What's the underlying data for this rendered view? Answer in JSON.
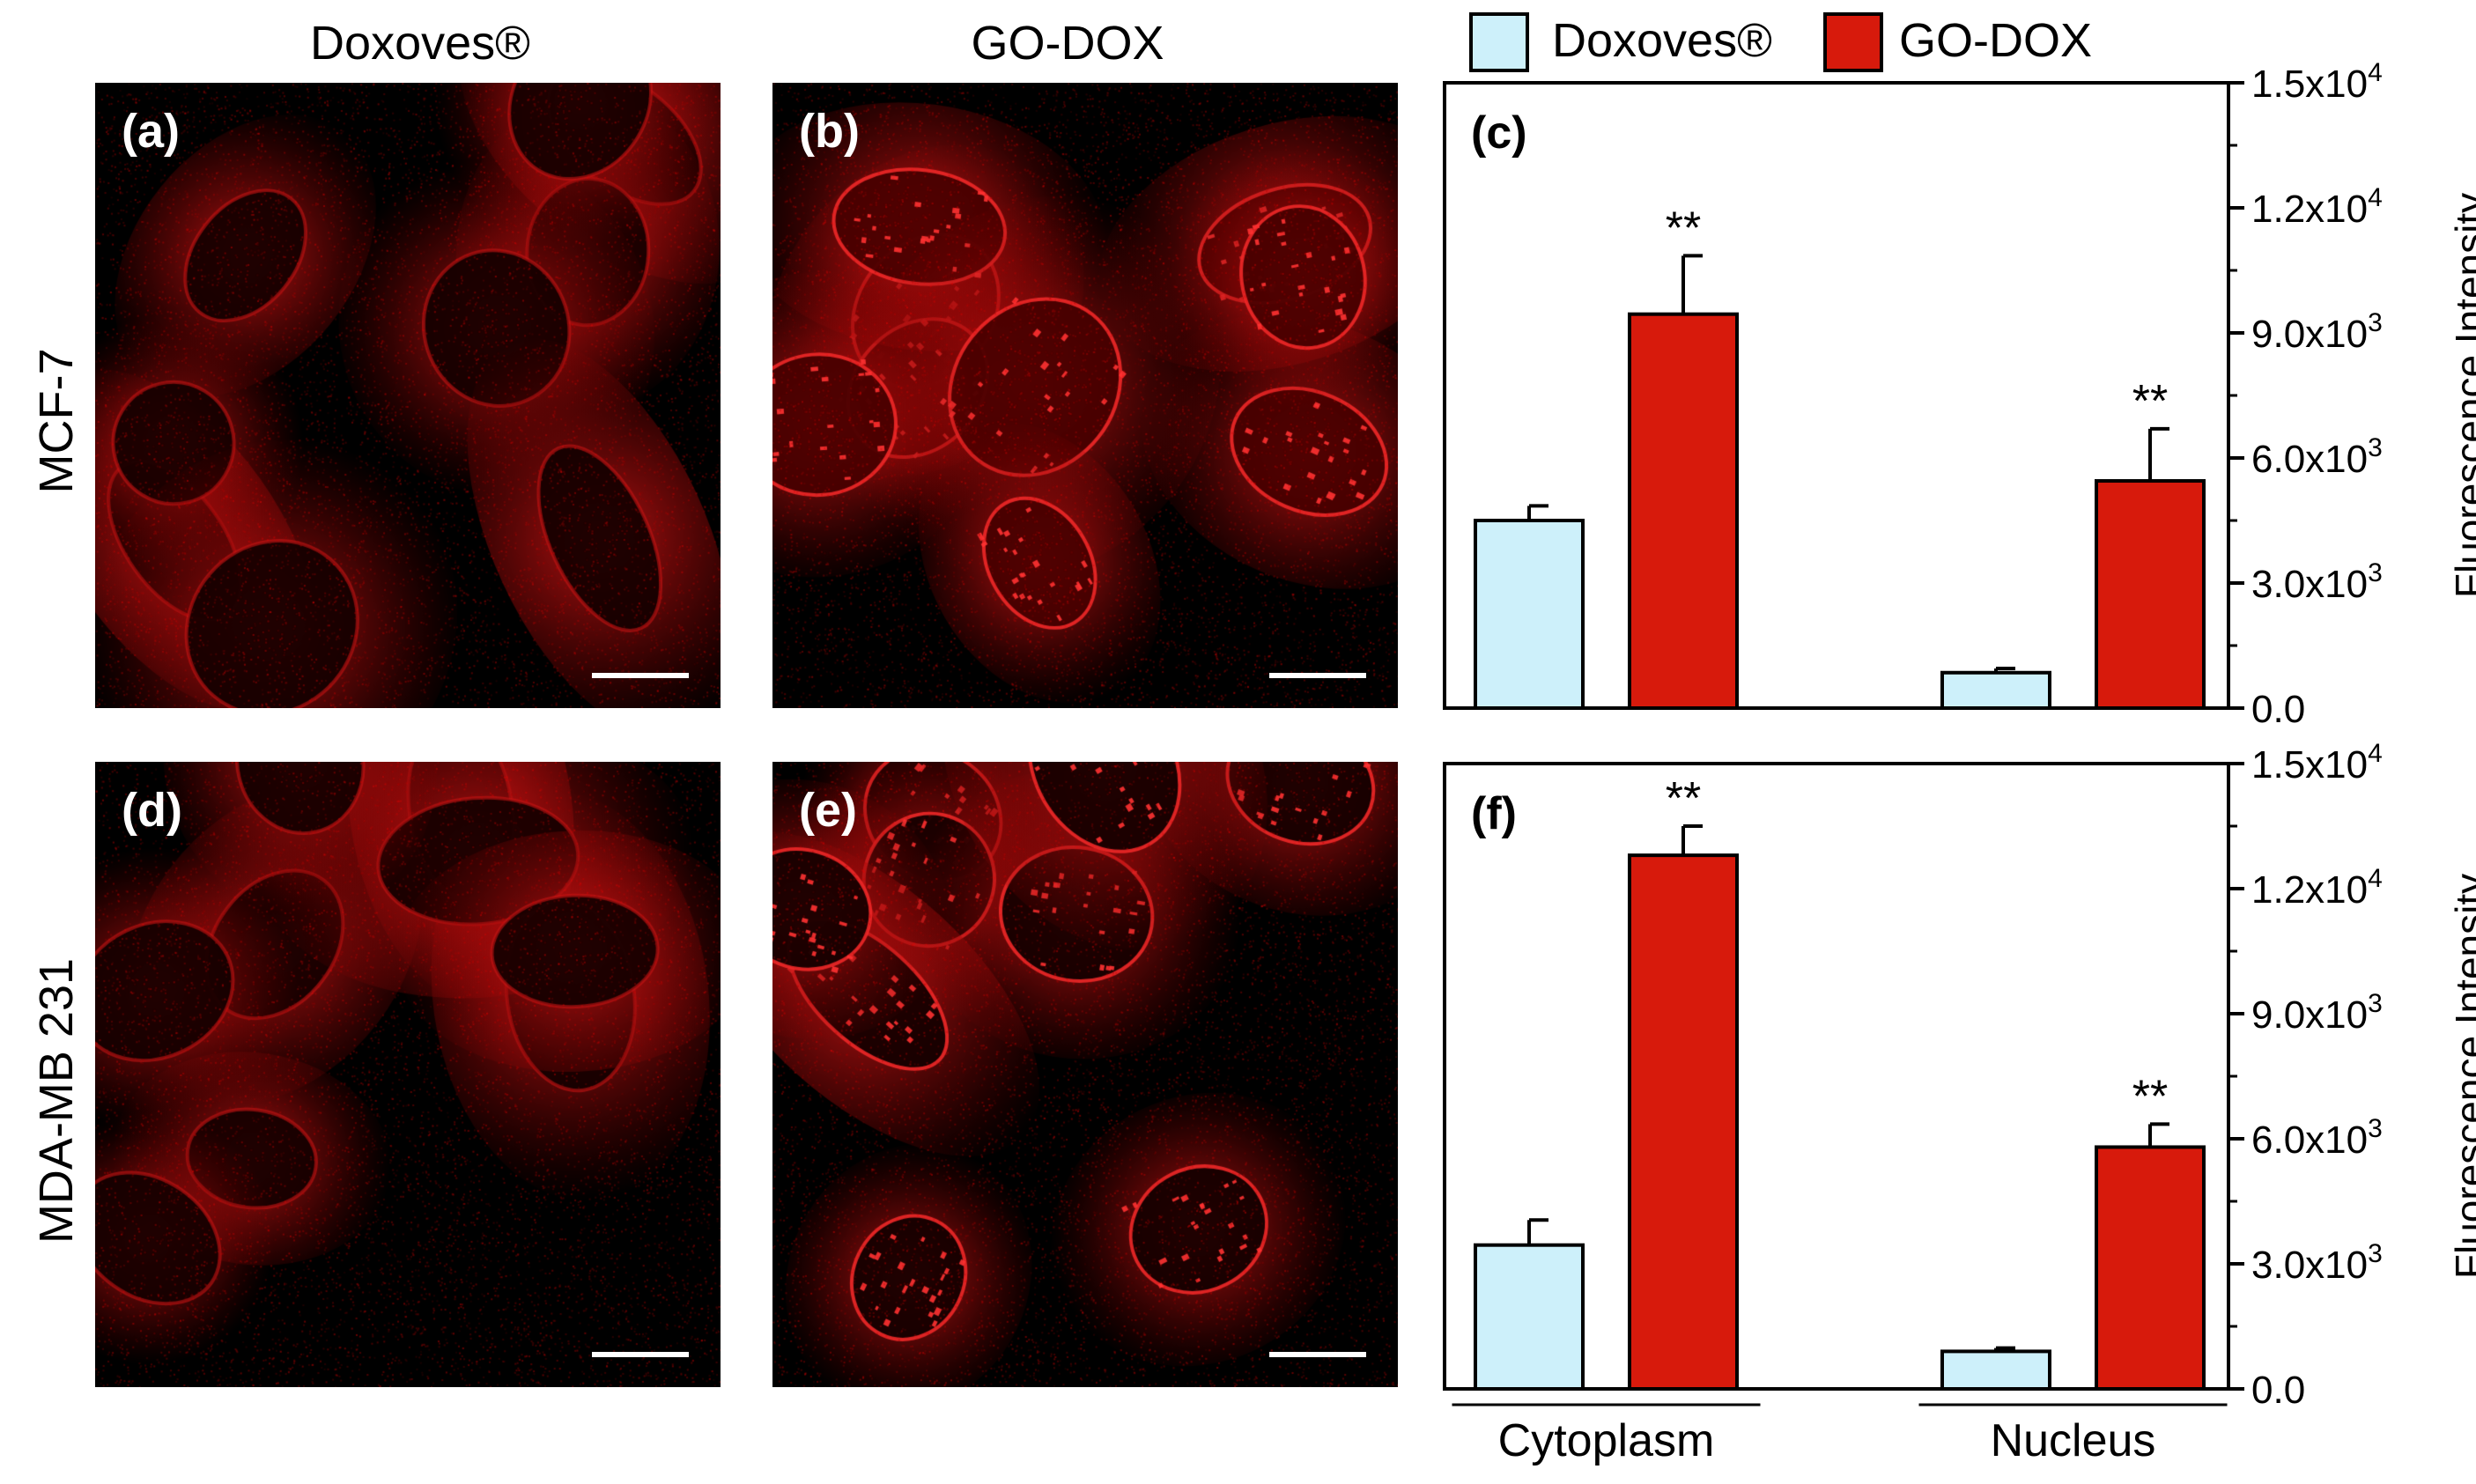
{
  "columns": [
    "Doxoves®",
    "GO-DOX"
  ],
  "rows": [
    "MCF-7",
    "MDA-MB 231"
  ],
  "images": [
    {
      "label": "(a)",
      "row": "MCF-7",
      "treatment": "Doxoves®"
    },
    {
      "label": "(b)",
      "row": "MCF-7",
      "treatment": "GO-DOX"
    },
    {
      "label": "(d)",
      "row": "MDA-MB 231",
      "treatment": "Doxoves®"
    },
    {
      "label": "(e)",
      "row": "MDA-MB 231",
      "treatment": "GO-DOX"
    }
  ],
  "legend": {
    "items": [
      {
        "name": "Doxoves®",
        "color": "#cdf0fa"
      },
      {
        "name": "GO-DOX",
        "color": "#d71a0c"
      }
    ]
  },
  "chart_data": [
    {
      "panel": "(c)",
      "type": "bar",
      "categories": [
        "Cytoplasm",
        "Nucleus"
      ],
      "series": [
        {
          "name": "Doxoves®",
          "values": [
            4500,
            850
          ],
          "errors": [
            350,
            100
          ],
          "color": "#cdf0fa"
        },
        {
          "name": "GO-DOX",
          "values": [
            9450,
            5450
          ],
          "errors": [
            1400,
            1250
          ],
          "color": "#d71a0c",
          "annotations": [
            "**",
            "**"
          ]
        }
      ],
      "ylabel": "Fluorescence Intensity",
      "ylim": [
        0,
        15000
      ],
      "yticks": [
        0,
        3000,
        6000,
        9000,
        12000,
        15000
      ],
      "ytick_labels": [
        "0.0",
        "3.0x10^3",
        "6.0x10^3",
        "9.0x10^3",
        "1.2x10^4",
        "1.5x10^4"
      ],
      "show_xlabels": false,
      "grid": false
    },
    {
      "panel": "(f)",
      "type": "bar",
      "categories": [
        "Cytoplasm",
        "Nucleus"
      ],
      "series": [
        {
          "name": "Doxoves®",
          "values": [
            3450,
            900
          ],
          "errors": [
            600,
            80
          ],
          "color": "#cdf0fa"
        },
        {
          "name": "GO-DOX",
          "values": [
            12800,
            5800
          ],
          "errors": [
            700,
            550
          ],
          "color": "#d71a0c",
          "annotations": [
            "**",
            "**"
          ]
        }
      ],
      "ylabel": "Fluorescence Intensity",
      "ylim": [
        0,
        15000
      ],
      "yticks": [
        0,
        3000,
        6000,
        9000,
        12000,
        15000
      ],
      "ytick_labels": [
        "0.0",
        "3.0x10^3",
        "6.0x10^3",
        "9.0x10^3",
        "1.2x10^4",
        "1.5x10^4"
      ],
      "show_xlabels": true,
      "grid": false
    }
  ]
}
